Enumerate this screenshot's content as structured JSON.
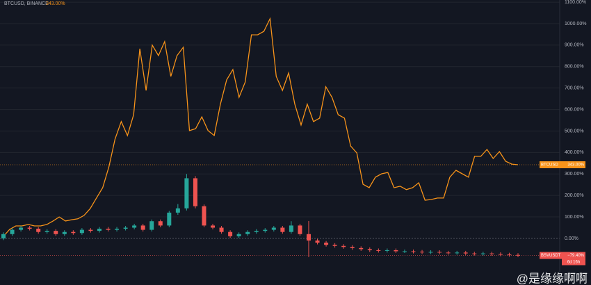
{
  "chart_data": {
    "type": "line+candlestick",
    "title": "BTCUSD, BINANCE",
    "title_value": "343.00%",
    "ylim": [
      -217,
      1110
    ],
    "yticks": [
      {
        "value": 0,
        "label": "0.00%"
      },
      {
        "value": 100,
        "label": "100.00%"
      },
      {
        "value": 200,
        "label": "200.00%"
      },
      {
        "value": 300,
        "label": "300.00%"
      },
      {
        "value": 400,
        "label": "400.00%"
      },
      {
        "value": 500,
        "label": "500.00%"
      },
      {
        "value": 600,
        "label": "600.00%"
      },
      {
        "value": 700,
        "label": "700.00%"
      },
      {
        "value": 800,
        "label": "800.00%"
      },
      {
        "value": 900,
        "label": "900.00%"
      },
      {
        "value": 1000,
        "label": "1000.00%"
      },
      {
        "value": 1100,
        "label": "1100.00%"
      }
    ],
    "grid": true,
    "series": [
      {
        "name": "BTCUSD",
        "type": "line",
        "color": "#f7931a",
        "last_label": "343.00%",
        "values": [
          10,
          42,
          58,
          58,
          65,
          58,
          58,
          65,
          81,
          100,
          81,
          87,
          91,
          107,
          139,
          188,
          236,
          333,
          463,
          544,
          479,
          576,
          883,
          689,
          900,
          851,
          916,
          754,
          851,
          890,
          502,
          511,
          566,
          502,
          479,
          625,
          738,
          786,
          657,
          728,
          948,
          948,
          964,
          1023,
          754,
          689,
          770,
          625,
          528,
          625,
          544,
          560,
          706,
          657,
          576,
          560,
          430,
          398,
          252,
          236,
          285,
          301,
          307,
          236,
          243,
          227,
          236,
          259,
          178,
          181,
          188,
          188,
          285,
          317,
          301,
          285,
          382,
          382,
          414,
          372,
          404,
          359,
          346,
          343
        ]
      },
      {
        "name": "BSVUSDT",
        "type": "candlestick",
        "up_color": "#26a69a",
        "down_color": "#ef5350",
        "last_label": "−79.40%",
        "countdown": "6d 16h",
        "open": [
          0,
          20,
          40,
          50,
          45,
          30,
          35,
          20,
          30,
          25,
          40,
          35,
          45,
          40,
          45,
          50,
          60,
          40,
          80,
          60,
          120,
          140,
          280,
          150,
          60,
          50,
          30,
          10,
          20,
          30,
          35,
          40,
          50,
          30,
          60,
          20,
          -10,
          -20,
          -30,
          -35,
          -40,
          -45,
          -50,
          -55,
          -58,
          -55,
          -60,
          -60,
          -62,
          -65,
          -63,
          -66,
          -68,
          -66,
          -70,
          -72,
          -70,
          -73,
          -75,
          -77
        ],
        "high": [
          28,
          48,
          58,
          58,
          53,
          43,
          43,
          38,
          38,
          48,
          48,
          53,
          53,
          53,
          58,
          68,
          68,
          88,
          88,
          128,
          160,
          300,
          290,
          158,
          68,
          58,
          38,
          28,
          38,
          43,
          48,
          58,
          58,
          80,
          68,
          81,
          -2,
          -12,
          -22,
          -27,
          -32,
          -37,
          -42,
          -47,
          -47,
          -47,
          -52,
          -52,
          -54,
          -55,
          -55,
          -58,
          -58,
          -58,
          -62,
          -62,
          -62,
          -65,
          -67,
          -69
        ],
        "low": [
          -8,
          12,
          32,
          37,
          22,
          22,
          12,
          12,
          17,
          17,
          27,
          27,
          32,
          32,
          37,
          42,
          32,
          32,
          52,
          52,
          110,
          130,
          140,
          52,
          42,
          22,
          2,
          2,
          12,
          22,
          27,
          32,
          22,
          22,
          12,
          -87,
          -28,
          -38,
          -43,
          -48,
          -53,
          -58,
          -63,
          -66,
          -66,
          -68,
          -68,
          -70,
          -73,
          -73,
          -74,
          -76,
          -76,
          -78,
          -80,
          -80,
          -81,
          -83,
          -85,
          -87
        ],
        "close": [
          20,
          40,
          50,
          45,
          30,
          35,
          20,
          30,
          25,
          40,
          35,
          45,
          40,
          45,
          50,
          60,
          40,
          80,
          60,
          120,
          140,
          280,
          150,
          60,
          50,
          30,
          10,
          20,
          30,
          35,
          40,
          50,
          30,
          60,
          20,
          -10,
          -20,
          -30,
          -35,
          -40,
          -45,
          -50,
          -55,
          -58,
          -55,
          -60,
          -60,
          -62,
          -65,
          -63,
          -66,
          -68,
          -66,
          -70,
          -72,
          -70,
          -73,
          -75,
          -77,
          -79.4
        ]
      }
    ],
    "watermark": "@是缘缘啊啊"
  }
}
